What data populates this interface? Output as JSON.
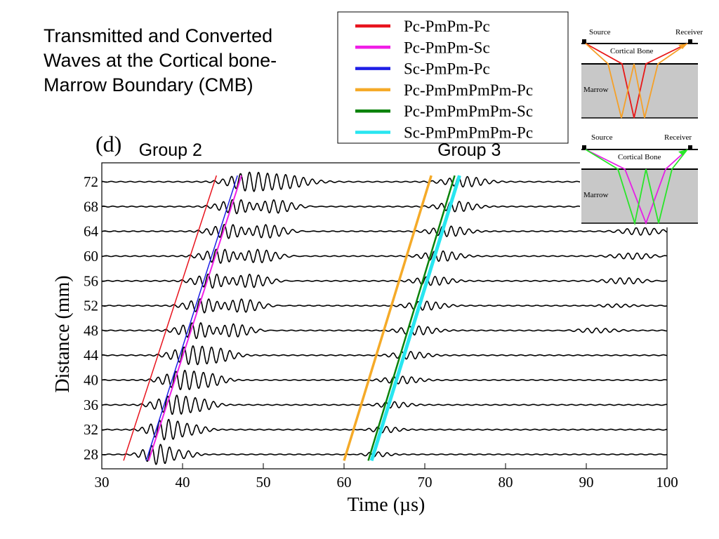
{
  "slide": {
    "title_lines": [
      "Transmitted and Converted",
      "Waves at the Cortical bone-",
      "Marrow Boundary (CMB)"
    ]
  },
  "chart_data": {
    "type": "line",
    "panel_label": "(d)",
    "xlabel": "Time (µs)",
    "ylabel": "Distance (mm)",
    "xlim": [
      30,
      100
    ],
    "x_ticks": [
      30,
      40,
      50,
      60,
      70,
      80,
      90,
      100
    ],
    "y_ticks": [
      28,
      32,
      36,
      40,
      44,
      48,
      52,
      56,
      60,
      64,
      68,
      72
    ],
    "groups": [
      {
        "label": "Group 2",
        "x": 38.5
      },
      {
        "label": "Group 3",
        "x": 75.5
      }
    ],
    "legend": [
      {
        "name": "Pc-PmPm-Pc",
        "color": "#e8141e"
      },
      {
        "name": "Pc-PmPm-Sc",
        "color": "#f01ee6"
      },
      {
        "name": "Sc-PmPm-Pc",
        "color": "#1e1ee6"
      },
      {
        "name": "Pc-PmPmPmPm-Pc",
        "color": "#f5aa28"
      },
      {
        "name": "Pc-PmPmPmPm-Sc",
        "color": "#0a820a"
      },
      {
        "name": "Sc-PmPmPmPm-Pc",
        "color": "#28e6f0"
      }
    ],
    "arrival_lines": [
      {
        "name": "Pc-PmPm-Pc",
        "color": "#e8141e",
        "width": 1.5,
        "t_at_27": 32.7,
        "t_at_73": 44.2
      },
      {
        "name": "Pc-PmPm-Sc",
        "color": "#f01ee6",
        "width": 2,
        "t_at_27": 35.8,
        "t_at_73": 47.3
      },
      {
        "name": "Sc-PmPm-Pc",
        "color": "#1e1ee6",
        "width": 1.5,
        "t_at_27": 35.5,
        "t_at_73": 46.8
      },
      {
        "name": "Pc-PmPmPmPm-Pc",
        "color": "#f5aa28",
        "width": 3.5,
        "t_at_27": 60.0,
        "t_at_73": 70.8
      },
      {
        "name": "Sc-PmPmPmPm-Pc",
        "color": "#28e6f0",
        "width": 5,
        "t_at_27": 63.4,
        "t_at_73": 74.3
      },
      {
        "name": "Pc-PmPmPmPm-Sc",
        "color": "#0a820a",
        "width": 2.5,
        "t_at_27": 63.0,
        "t_at_73": 73.7
      }
    ],
    "traces": [
      {
        "distance": 28,
        "packets": [
          {
            "t": 37.0,
            "amp": 1.5,
            "w": 1.6
          },
          {
            "t": 40.5,
            "amp": 0.5,
            "w": 1.2
          },
          {
            "t": 64.0,
            "amp": 0.4,
            "w": 1.5
          }
        ]
      },
      {
        "distance": 32,
        "packets": [
          {
            "t": 38.0,
            "amp": 1.5,
            "w": 1.8
          },
          {
            "t": 41.5,
            "amp": 0.6,
            "w": 1.5
          },
          {
            "t": 65.0,
            "amp": 0.5,
            "w": 1.6
          }
        ]
      },
      {
        "distance": 36,
        "packets": [
          {
            "t": 39.0,
            "amp": 1.4,
            "w": 2.0
          },
          {
            "t": 42.5,
            "amp": 0.7,
            "w": 1.5
          },
          {
            "t": 66.0,
            "amp": 0.5,
            "w": 1.8
          }
        ]
      },
      {
        "distance": 40,
        "packets": [
          {
            "t": 40.0,
            "amp": 1.4,
            "w": 2.0
          },
          {
            "t": 43.5,
            "amp": 0.8,
            "w": 1.6
          },
          {
            "t": 67.0,
            "amp": 0.6,
            "w": 2.0
          }
        ]
      },
      {
        "distance": 44,
        "packets": [
          {
            "t": 41.0,
            "amp": 1.3,
            "w": 2.0
          },
          {
            "t": 44.5,
            "amp": 0.9,
            "w": 1.8
          },
          {
            "t": 68.0,
            "amp": 0.6,
            "w": 2.0
          }
        ]
      },
      {
        "distance": 48,
        "packets": [
          {
            "t": 42.0,
            "amp": 1.3,
            "w": 2.0
          },
          {
            "t": 46.0,
            "amp": 1.0,
            "w": 2.0
          },
          {
            "t": 69.0,
            "amp": 0.7,
            "w": 2.0
          },
          {
            "t": 91.0,
            "amp": 0.3,
            "w": 2.0
          }
        ]
      },
      {
        "distance": 52,
        "packets": [
          {
            "t": 43.0,
            "amp": 1.2,
            "w": 2.0
          },
          {
            "t": 47.0,
            "amp": 1.0,
            "w": 2.2
          },
          {
            "t": 70.0,
            "amp": 0.7,
            "w": 2.0
          },
          {
            "t": 93.5,
            "amp": 0.3,
            "w": 2.0
          }
        ]
      },
      {
        "distance": 56,
        "packets": [
          {
            "t": 44.0,
            "amp": 1.2,
            "w": 2.0
          },
          {
            "t": 48.0,
            "amp": 1.0,
            "w": 2.2
          },
          {
            "t": 71.0,
            "amp": 0.7,
            "w": 2.0
          },
          {
            "t": 95.0,
            "amp": 0.4,
            "w": 2.0
          }
        ]
      },
      {
        "distance": 60,
        "packets": [
          {
            "t": 45.0,
            "amp": 1.2,
            "w": 2.0
          },
          {
            "t": 49.0,
            "amp": 1.0,
            "w": 2.2
          },
          {
            "t": 72.0,
            "amp": 0.8,
            "w": 2.0
          },
          {
            "t": 96.0,
            "amp": 0.4,
            "w": 2.0
          }
        ]
      },
      {
        "distance": 64,
        "packets": [
          {
            "t": 46.0,
            "amp": 1.2,
            "w": 2.0
          },
          {
            "t": 50.0,
            "amp": 1.0,
            "w": 2.2
          },
          {
            "t": 73.0,
            "amp": 0.8,
            "w": 2.0
          },
          {
            "t": 97.0,
            "amp": 0.5,
            "w": 2.0
          }
        ]
      },
      {
        "distance": 68,
        "packets": [
          {
            "t": 47.0,
            "amp": 1.2,
            "w": 2.0
          },
          {
            "t": 51.0,
            "amp": 1.0,
            "w": 2.2
          },
          {
            "t": 74.0,
            "amp": 0.8,
            "w": 2.0
          }
        ]
      },
      {
        "distance": 72,
        "packets": [
          {
            "t": 48.0,
            "amp": 1.2,
            "w": 2.0
          },
          {
            "t": 52.5,
            "amp": 1.0,
            "w": 2.5
          },
          {
            "t": 75.0,
            "amp": 0.8,
            "w": 2.2
          }
        ]
      }
    ]
  },
  "insets": {
    "top": {
      "source_label": "Source",
      "receiver_label": "Receiver",
      "layer_label": "Cortical Bone",
      "marrow_label": "Marrow"
    },
    "bottom": {
      "source_label": "Source",
      "receiver_label": "Receiver",
      "layer_label": "Cortical Bone",
      "marrow_label": "Marrow"
    }
  }
}
